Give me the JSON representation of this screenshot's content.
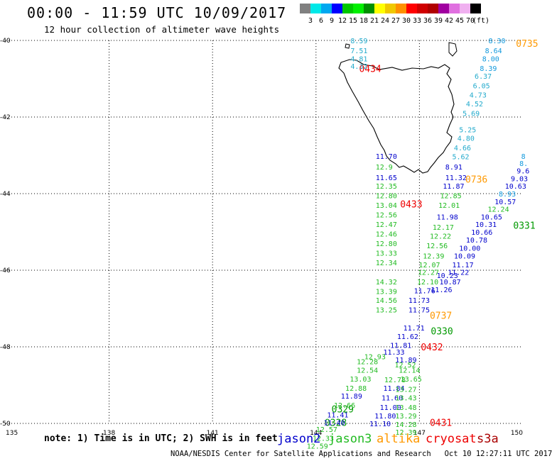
{
  "title": "00:00 - 11:59 UTC 10/09/2017",
  "subtitle": "12 hour collection of altimeter wave heights",
  "legend": {
    "unit": "(ft)",
    "items": [
      {
        "label": "3",
        "color": "#808080"
      },
      {
        "label": "6",
        "color": "#00e8e8"
      },
      {
        "label": "9",
        "color": "#00a8f0"
      },
      {
        "label": "12",
        "color": "#0000ff"
      },
      {
        "label": "15",
        "color": "#00c800"
      },
      {
        "label": "18",
        "color": "#00f000"
      },
      {
        "label": "21",
        "color": "#009000"
      },
      {
        "label": "24",
        "color": "#ffff00"
      },
      {
        "label": "27",
        "color": "#f0c800"
      },
      {
        "label": "30",
        "color": "#ff9000"
      },
      {
        "label": "33",
        "color": "#ff0000"
      },
      {
        "label": "36",
        "color": "#d00000"
      },
      {
        "label": "39",
        "color": "#b00000"
      },
      {
        "label": "42",
        "color": "#a000a0"
      },
      {
        "label": "45",
        "color": "#e070e0"
      },
      {
        "label": "70",
        "color": "#f0b0f0"
      },
      {
        "label": "",
        "color": "#000000"
      }
    ]
  },
  "axes": {
    "lon_ticks": [
      {
        "lon": 135,
        "label": "135"
      },
      {
        "lon": 138,
        "label": "138"
      },
      {
        "lon": 141,
        "label": "141"
      },
      {
        "lon": 144,
        "label": "144"
      },
      {
        "lon": 147,
        "label": "147"
      },
      {
        "lon": 150,
        "label": "150"
      }
    ],
    "lat_ticks": [
      {
        "lat": -40,
        "label": "-40"
      },
      {
        "lat": -42,
        "label": "-42"
      },
      {
        "lat": -44,
        "label": "-44"
      },
      {
        "lat": -46,
        "label": "-46"
      },
      {
        "lat": -48,
        "label": "-48"
      },
      {
        "lat": -50,
        "label": "-50"
      }
    ]
  },
  "colors": {
    "jason2": "#0000cc",
    "jason3": "#22bb22",
    "altika": "#ff9900",
    "cryosat": "#ee0000",
    "s3a": "#aa0000",
    "lightcyan": "#22aacc",
    "cyanblue": "#1199dd"
  },
  "satellites": [
    {
      "label": "jason2",
      "color": "#0000cc"
    },
    {
      "label": "jason3",
      "color": "#22bb22"
    },
    {
      "label": "altika",
      "color": "#ff9900"
    },
    {
      "label": "cryosat",
      "color": "#ee0000"
    },
    {
      "label": "s3a",
      "color": "#aa0000"
    }
  ],
  "note": "note: 1) Time is in UTC; 2) SWH is in feet",
  "footer": "NOAA/NESDIS Center for Satellite Applications and Research   Oct 10 12:27:11 UTC 2017",
  "pass_labels": [
    {
      "text": "0434",
      "lon": 145.25,
      "lat": -40.73,
      "color": "#ee0000"
    },
    {
      "text": "0433",
      "lon": 146.44,
      "lat": -44.27,
      "color": "#ee0000"
    },
    {
      "text": "0432",
      "lon": 147.04,
      "lat": -48.0,
      "color": "#ee0000"
    },
    {
      "text": "0431",
      "lon": 147.3,
      "lat": -49.97,
      "color": "#ee0000"
    },
    {
      "text": "0736",
      "lon": 148.33,
      "lat": -43.62,
      "color": "#ff9900"
    },
    {
      "text": "0737",
      "lon": 147.3,
      "lat": -47.18,
      "color": "#ff9900"
    },
    {
      "text": "0735",
      "lon": 149.8,
      "lat": -40.07,
      "color": "#ff9900"
    },
    {
      "text": "0330",
      "lon": 147.33,
      "lat": -47.58,
      "color": "#009900"
    },
    {
      "text": "0329",
      "lon": 144.45,
      "lat": -49.62,
      "color": "#009900"
    },
    {
      "text": "0328",
      "lon": 144.25,
      "lat": -49.97,
      "color": "#009900"
    },
    {
      "text": "0331",
      "lon": 149.72,
      "lat": -44.82,
      "color": "#009900"
    }
  ],
  "wave_heights": [
    {
      "v": "8.59",
      "lon": 145.0,
      "lat": -40.0,
      "c": "#22aacc"
    },
    {
      "v": "7.51",
      "lon": 145.0,
      "lat": -40.26,
      "c": "#22aacc"
    },
    {
      "v": "4.81",
      "lon": 145.0,
      "lat": -40.47,
      "c": "#22aacc"
    },
    {
      "v": "4.32",
      "lon": 145.0,
      "lat": -40.67,
      "c": "#22aacc"
    },
    {
      "v": "8.30",
      "lon": 149.0,
      "lat": -40.0,
      "c": "#1199dd"
    },
    {
      "v": "8.64",
      "lon": 148.9,
      "lat": -40.26,
      "c": "#1199dd"
    },
    {
      "v": "8.00",
      "lon": 148.82,
      "lat": -40.47,
      "c": "#1199dd"
    },
    {
      "v": "8.39",
      "lon": 148.75,
      "lat": -40.72,
      "c": "#1199dd"
    },
    {
      "v": "6.37",
      "lon": 148.6,
      "lat": -40.93,
      "c": "#22aacc"
    },
    {
      "v": "6.05",
      "lon": 148.55,
      "lat": -41.18,
      "c": "#22aacc"
    },
    {
      "v": "4.73",
      "lon": 148.45,
      "lat": -41.42,
      "c": "#22aacc"
    },
    {
      "v": "4.52",
      "lon": 148.35,
      "lat": -41.65,
      "c": "#22aacc"
    },
    {
      "v": "5.69",
      "lon": 148.25,
      "lat": -41.9,
      "c": "#22aacc"
    },
    {
      "v": "5.25",
      "lon": 148.15,
      "lat": -42.32,
      "c": "#22aacc"
    },
    {
      "v": "4.80",
      "lon": 148.1,
      "lat": -42.55,
      "c": "#22aacc"
    },
    {
      "v": "4.66",
      "lon": 148.0,
      "lat": -42.8,
      "c": "#22aacc"
    },
    {
      "v": "5.62",
      "lon": 147.95,
      "lat": -43.03,
      "c": "#22aacc"
    },
    {
      "v": "8.91",
      "lon": 147.75,
      "lat": -43.3,
      "c": "#0000cc"
    },
    {
      "v": "11.32",
      "lon": 147.75,
      "lat": -43.57,
      "c": "#0000cc"
    },
    {
      "v": "11.87",
      "lon": 147.68,
      "lat": -43.8,
      "c": "#0000cc"
    },
    {
      "v": "12.85",
      "lon": 147.6,
      "lat": -44.05,
      "c": "#22bb22"
    },
    {
      "v": "12.01",
      "lon": 147.55,
      "lat": -44.3,
      "c": "#22bb22"
    },
    {
      "v": "11.98",
      "lon": 147.5,
      "lat": -44.6,
      "c": "#0000cc"
    },
    {
      "v": "12.17",
      "lon": 147.38,
      "lat": -44.87,
      "c": "#22bb22"
    },
    {
      "v": "12.22",
      "lon": 147.3,
      "lat": -45.1,
      "c": "#22bb22"
    },
    {
      "v": "12.56",
      "lon": 147.2,
      "lat": -45.35,
      "c": "#22bb22"
    },
    {
      "v": "12.39",
      "lon": 147.1,
      "lat": -45.62,
      "c": "#22bb22"
    },
    {
      "v": "12.07",
      "lon": 146.98,
      "lat": -45.85,
      "c": "#22bb22"
    },
    {
      "v": "12.27",
      "lon": 146.95,
      "lat": -46.05,
      "c": "#22bb22"
    },
    {
      "v": "12.10",
      "lon": 146.93,
      "lat": -46.3,
      "c": "#22bb22"
    },
    {
      "v": "11.76",
      "lon": 146.84,
      "lat": -46.53,
      "c": "#0000cc"
    },
    {
      "v": "11.73",
      "lon": 146.68,
      "lat": -46.78,
      "c": "#0000cc"
    },
    {
      "v": "11.75",
      "lon": 146.68,
      "lat": -47.03,
      "c": "#0000cc"
    },
    {
      "v": "11.71",
      "lon": 146.53,
      "lat": -47.5,
      "c": "#0000cc"
    },
    {
      "v": "11.62",
      "lon": 146.35,
      "lat": -47.72,
      "c": "#0000cc"
    },
    {
      "v": "11.81",
      "lon": 146.15,
      "lat": -47.95,
      "c": "#0000cc"
    },
    {
      "v": "11.33",
      "lon": 145.95,
      "lat": -48.13,
      "c": "#0000cc"
    },
    {
      "v": "11.89",
      "lon": 146.3,
      "lat": -48.33,
      "c": "#0000cc"
    },
    {
      "v": "11.84",
      "lon": 145.95,
      "lat": -49.07,
      "c": "#0000cc"
    },
    {
      "v": "11.60",
      "lon": 145.9,
      "lat": -49.32,
      "c": "#0000cc"
    },
    {
      "v": "11.00",
      "lon": 145.85,
      "lat": -49.57,
      "c": "#0000cc"
    },
    {
      "v": "11.80",
      "lon": 145.7,
      "lat": -49.8,
      "c": "#0000cc"
    },
    {
      "v": "11.10",
      "lon": 145.55,
      "lat": -50.0,
      "c": "#0000cc"
    },
    {
      "v": "11.70",
      "lon": 145.73,
      "lat": -43.02,
      "c": "#0000cc"
    },
    {
      "v": "11.65",
      "lon": 145.73,
      "lat": -43.57,
      "c": "#0000cc"
    },
    {
      "v": "12.35",
      "lon": 145.73,
      "lat": -43.8,
      "c": "#22bb22"
    },
    {
      "v": "12.80",
      "lon": 145.73,
      "lat": -44.05,
      "c": "#22bb22"
    },
    {
      "v": "13.04",
      "lon": 145.73,
      "lat": -44.3,
      "c": "#22bb22"
    },
    {
      "v": "12.56",
      "lon": 145.73,
      "lat": -44.55,
      "c": "#22bb22"
    },
    {
      "v": "12.47",
      "lon": 145.73,
      "lat": -44.8,
      "c": "#22bb22"
    },
    {
      "v": "12.46",
      "lon": 145.73,
      "lat": -45.05,
      "c": "#22bb22"
    },
    {
      "v": "12.80",
      "lon": 145.73,
      "lat": -45.3,
      "c": "#22bb22"
    },
    {
      "v": "13.33",
      "lon": 145.73,
      "lat": -45.55,
      "c": "#22bb22"
    },
    {
      "v": "12.34",
      "lon": 145.73,
      "lat": -45.8,
      "c": "#22bb22"
    },
    {
      "v": "14.32",
      "lon": 145.73,
      "lat": -46.3,
      "c": "#22bb22"
    },
    {
      "v": "13.39",
      "lon": 145.73,
      "lat": -46.55,
      "c": "#22bb22"
    },
    {
      "v": "14.56",
      "lon": 145.73,
      "lat": -46.78,
      "c": "#22bb22"
    },
    {
      "v": "13.25",
      "lon": 145.73,
      "lat": -47.03,
      "c": "#22bb22"
    },
    {
      "v": "12.28",
      "lon": 145.18,
      "lat": -48.38,
      "c": "#22bb22"
    },
    {
      "v": "12.54",
      "lon": 145.18,
      "lat": -48.6,
      "c": "#22bb22"
    },
    {
      "v": "13.03",
      "lon": 144.98,
      "lat": -48.83,
      "c": "#22bb22"
    },
    {
      "v": "12.88",
      "lon": 144.85,
      "lat": -49.07,
      "c": "#22bb22"
    },
    {
      "v": "11.89",
      "lon": 144.72,
      "lat": -49.28,
      "c": "#0000cc"
    },
    {
      "v": "12.66",
      "lon": 144.52,
      "lat": -49.52,
      "c": "#22bb22"
    },
    {
      "v": "11.41",
      "lon": 144.32,
      "lat": -49.77,
      "c": "#0000cc"
    },
    {
      "v": "11.40",
      "lon": 144.22,
      "lat": -49.97,
      "c": "#0000cc"
    },
    {
      "v": "12.57",
      "lon": 144.0,
      "lat": -50.15,
      "c": "#22bb22"
    },
    {
      "v": "12.33",
      "lon": 143.9,
      "lat": -50.38,
      "c": "#22bb22"
    },
    {
      "v": "12.59",
      "lon": 143.73,
      "lat": -50.58,
      "c": "#22bb22"
    },
    {
      "v": "12.78",
      "lon": 145.98,
      "lat": -48.85,
      "c": "#22bb22"
    },
    {
      "v": "13.27",
      "lon": 146.3,
      "lat": -49.1,
      "c": "#22bb22"
    },
    {
      "v": "13.43",
      "lon": 146.3,
      "lat": -49.32,
      "c": "#22bb22"
    },
    {
      "v": "13.48",
      "lon": 146.3,
      "lat": -49.57,
      "c": "#22bb22"
    },
    {
      "v": "13.29",
      "lon": 146.3,
      "lat": -49.8,
      "c": "#22bb22"
    },
    {
      "v": "14.28",
      "lon": 146.3,
      "lat": -50.02,
      "c": "#22bb22"
    },
    {
      "v": "12.39",
      "lon": 146.3,
      "lat": -50.22,
      "c": "#22bb22"
    },
    {
      "v": "13.65",
      "lon": 146.45,
      "lat": -48.83,
      "c": "#22bb22"
    },
    {
      "v": "12.14",
      "lon": 146.4,
      "lat": -48.6,
      "c": "#22bb22"
    },
    {
      "v": "12.52",
      "lon": 146.28,
      "lat": -48.46,
      "c": "#22bb22"
    },
    {
      "v": "12.93",
      "lon": 145.4,
      "lat": -48.25,
      "c": "#22bb22"
    },
    {
      "v": "11.17",
      "lon": 147.95,
      "lat": -45.85,
      "c": "#0000cc"
    },
    {
      "v": "11.22",
      "lon": 147.82,
      "lat": -46.05,
      "c": "#0000cc"
    },
    {
      "v": "10.23",
      "lon": 147.5,
      "lat": -46.13,
      "c": "#0000cc"
    },
    {
      "v": "10.87",
      "lon": 147.58,
      "lat": -46.3,
      "c": "#0000cc"
    },
    {
      "v": "11.26",
      "lon": 147.33,
      "lat": -46.5,
      "c": "#0000cc"
    },
    {
      "v": "10.09",
      "lon": 148.0,
      "lat": -45.62,
      "c": "#0000cc"
    },
    {
      "v": "10.00",
      "lon": 148.15,
      "lat": -45.42,
      "c": "#0000cc"
    },
    {
      "v": "10.78",
      "lon": 148.35,
      "lat": -45.2,
      "c": "#0000cc"
    },
    {
      "v": "10.66",
      "lon": 148.5,
      "lat": -45.0,
      "c": "#0000cc"
    },
    {
      "v": "10.31",
      "lon": 148.62,
      "lat": -44.8,
      "c": "#0000cc"
    },
    {
      "v": "10.65",
      "lon": 148.78,
      "lat": -44.6,
      "c": "#0000cc"
    },
    {
      "v": "12.24",
      "lon": 148.98,
      "lat": -44.4,
      "c": "#22bb22"
    },
    {
      "v": "10.57",
      "lon": 149.18,
      "lat": -44.2,
      "c": "#0000cc"
    },
    {
      "v": "8.93",
      "lon": 149.3,
      "lat": -44.0,
      "c": "#1199dd"
    },
    {
      "v": "10.63",
      "lon": 149.48,
      "lat": -43.8,
      "c": "#0000cc"
    },
    {
      "v": "9.03",
      "lon": 149.65,
      "lat": -43.6,
      "c": "#0000cc"
    },
    {
      "v": "9.6",
      "lon": 149.82,
      "lat": -43.4,
      "c": "#0000cc"
    },
    {
      "v": "8.",
      "lon": 149.9,
      "lat": -43.2,
      "c": "#1199dd"
    },
    {
      "v": "8",
      "lon": 149.95,
      "lat": -43.02,
      "c": "#1199dd"
    },
    {
      "v": "12.9",
      "lon": 145.73,
      "lat": -43.3,
      "c": "#22bb22"
    }
  ]
}
